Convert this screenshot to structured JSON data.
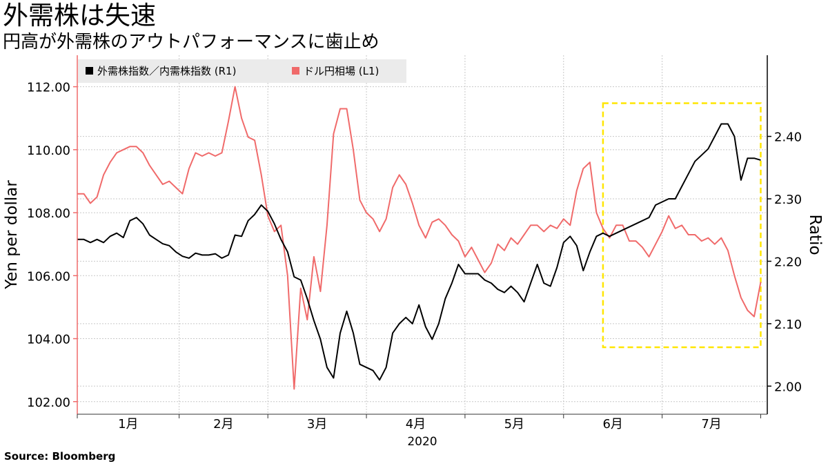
{
  "title": "外需株は失速",
  "subtitle": "円高が外需株のアウトパフォーマンスに歯止め",
  "source": "Source:  Bloomberg",
  "chart_data": {
    "type": "line",
    "x_tick_labels": [
      "1月",
      "2月",
      "3月",
      "4月",
      "5月",
      "6月",
      "7月"
    ],
    "x_year_label": "2020",
    "left_axis": {
      "label": "Yen per dollar",
      "ticks": [
        "102.00",
        "104.00",
        "106.00",
        "108.00",
        "110.00",
        "112.00"
      ],
      "range": [
        101.6,
        113.0
      ]
    },
    "right_axis": {
      "label": "Ratio",
      "ticks": [
        "2.00",
        "2.10",
        "2.20",
        "2.30",
        "2.40"
      ],
      "range": [
        1.955,
        2.53
      ]
    },
    "legend": {
      "position": "top-left",
      "items": [
        {
          "label": "外需株指数／内需株指数 (R1)",
          "color": "#000000"
        },
        {
          "label": "ドル円相場 (L1)",
          "color": "#f06a6a"
        }
      ]
    },
    "x_domain": [
      0,
      210
    ],
    "series": [
      {
        "name": "ドル円相場 (L1)",
        "axis": "left",
        "color": "#f06a6a",
        "x": [
          0,
          2,
          4,
          6,
          8,
          10,
          12,
          14,
          16,
          18,
          20,
          22,
          24,
          26,
          28,
          30,
          32,
          34,
          36,
          38,
          40,
          42,
          44,
          46,
          48,
          50,
          52,
          54,
          56,
          58,
          60,
          62,
          64,
          66,
          68,
          70,
          72,
          74,
          76,
          78,
          80,
          82,
          84,
          86,
          88,
          90,
          92,
          94,
          96,
          98,
          100,
          102,
          104,
          106,
          108,
          110,
          112,
          114,
          116,
          118,
          120,
          122,
          124,
          126,
          128,
          130,
          132,
          134,
          136,
          138,
          140,
          142,
          144,
          146,
          148,
          150,
          152,
          154,
          156,
          158,
          160,
          162,
          164,
          166,
          168,
          170,
          172,
          174,
          176,
          178,
          180,
          182,
          184,
          186,
          188,
          190,
          192,
          194,
          196,
          198,
          200,
          202,
          204,
          206,
          208
        ],
        "values": [
          108.6,
          108.6,
          108.3,
          108.5,
          109.2,
          109.6,
          109.9,
          110.0,
          110.1,
          110.1,
          109.9,
          109.5,
          109.2,
          108.9,
          109.0,
          108.8,
          108.6,
          109.4,
          109.9,
          109.8,
          109.9,
          109.8,
          109.9,
          110.9,
          112.0,
          111.0,
          110.4,
          110.3,
          109.2,
          107.9,
          107.4,
          107.6,
          106.0,
          102.4,
          105.6,
          104.6,
          106.6,
          105.5,
          107.6,
          110.5,
          111.3,
          111.3,
          110.0,
          108.4,
          108.0,
          107.8,
          107.4,
          107.8,
          108.8,
          109.2,
          108.9,
          108.3,
          107.6,
          107.2,
          107.7,
          107.8,
          107.6,
          107.3,
          107.1,
          106.6,
          106.9,
          106.5,
          106.1,
          106.4,
          107.0,
          106.8,
          107.2,
          107.0,
          107.3,
          107.6,
          107.6,
          107.4,
          107.6,
          107.5,
          107.8,
          107.6,
          108.7,
          109.4,
          109.6,
          108.0,
          107.5,
          107.2,
          107.6,
          107.6,
          107.1,
          107.1,
          106.9,
          106.6,
          107.0,
          107.4,
          107.9,
          107.5,
          107.6,
          107.3,
          107.3,
          107.1,
          107.2,
          107.0,
          107.2,
          106.8,
          106.0,
          105.3,
          104.9,
          104.7,
          105.8
        ]
      },
      {
        "name": "外需株指数／内需株指数 (R1)",
        "axis": "right",
        "color": "#000000",
        "x": [
          0,
          2,
          4,
          6,
          8,
          10,
          12,
          14,
          16,
          18,
          20,
          22,
          24,
          26,
          28,
          30,
          32,
          34,
          36,
          38,
          40,
          42,
          44,
          46,
          48,
          50,
          52,
          54,
          56,
          58,
          60,
          62,
          64,
          66,
          68,
          70,
          72,
          74,
          76,
          78,
          80,
          82,
          84,
          86,
          88,
          90,
          92,
          94,
          96,
          98,
          100,
          102,
          104,
          106,
          108,
          110,
          112,
          114,
          116,
          118,
          120,
          122,
          124,
          126,
          128,
          130,
          132,
          134,
          136,
          138,
          140,
          142,
          144,
          146,
          148,
          150,
          152,
          154,
          156,
          158,
          160,
          162,
          164,
          166,
          168,
          170,
          172,
          174,
          176,
          178,
          180,
          182,
          184,
          186,
          188,
          190,
          192,
          194,
          196,
          198,
          200,
          202,
          204,
          206,
          208
        ],
        "values": [
          2.235,
          2.235,
          2.23,
          2.235,
          2.23,
          2.24,
          2.245,
          2.238,
          2.265,
          2.27,
          2.26,
          2.242,
          2.235,
          2.228,
          2.225,
          2.215,
          2.208,
          2.205,
          2.213,
          2.21,
          2.21,
          2.212,
          2.205,
          2.21,
          2.242,
          2.24,
          2.265,
          2.275,
          2.29,
          2.28,
          2.26,
          2.235,
          2.215,
          2.175,
          2.17,
          2.14,
          2.105,
          2.075,
          2.03,
          2.013,
          2.085,
          2.12,
          2.085,
          2.035,
          2.03,
          2.025,
          2.01,
          2.03,
          2.085,
          2.1,
          2.11,
          2.1,
          2.13,
          2.095,
          2.075,
          2.1,
          2.14,
          2.165,
          2.195,
          2.18,
          2.18,
          2.18,
          2.17,
          2.165,
          2.155,
          2.15,
          2.16,
          2.15,
          2.135,
          2.165,
          2.195,
          2.165,
          2.16,
          2.19,
          2.23,
          2.24,
          2.225,
          2.185,
          2.215,
          2.24,
          2.245,
          2.24,
          2.245,
          2.25,
          2.255,
          2.26,
          2.265,
          2.27,
          2.29,
          2.295,
          2.3,
          2.3,
          2.32,
          2.34,
          2.36,
          2.37,
          2.38,
          2.4,
          2.42,
          2.42,
          2.4,
          2.33,
          2.365,
          2.365,
          2.362
        ]
      }
    ],
    "highlight_box": {
      "x_range": [
        160,
        208
      ],
      "y_range_right": [
        2.08,
        2.42
      ],
      "color": "#ffe600",
      "style": "dashed"
    }
  }
}
